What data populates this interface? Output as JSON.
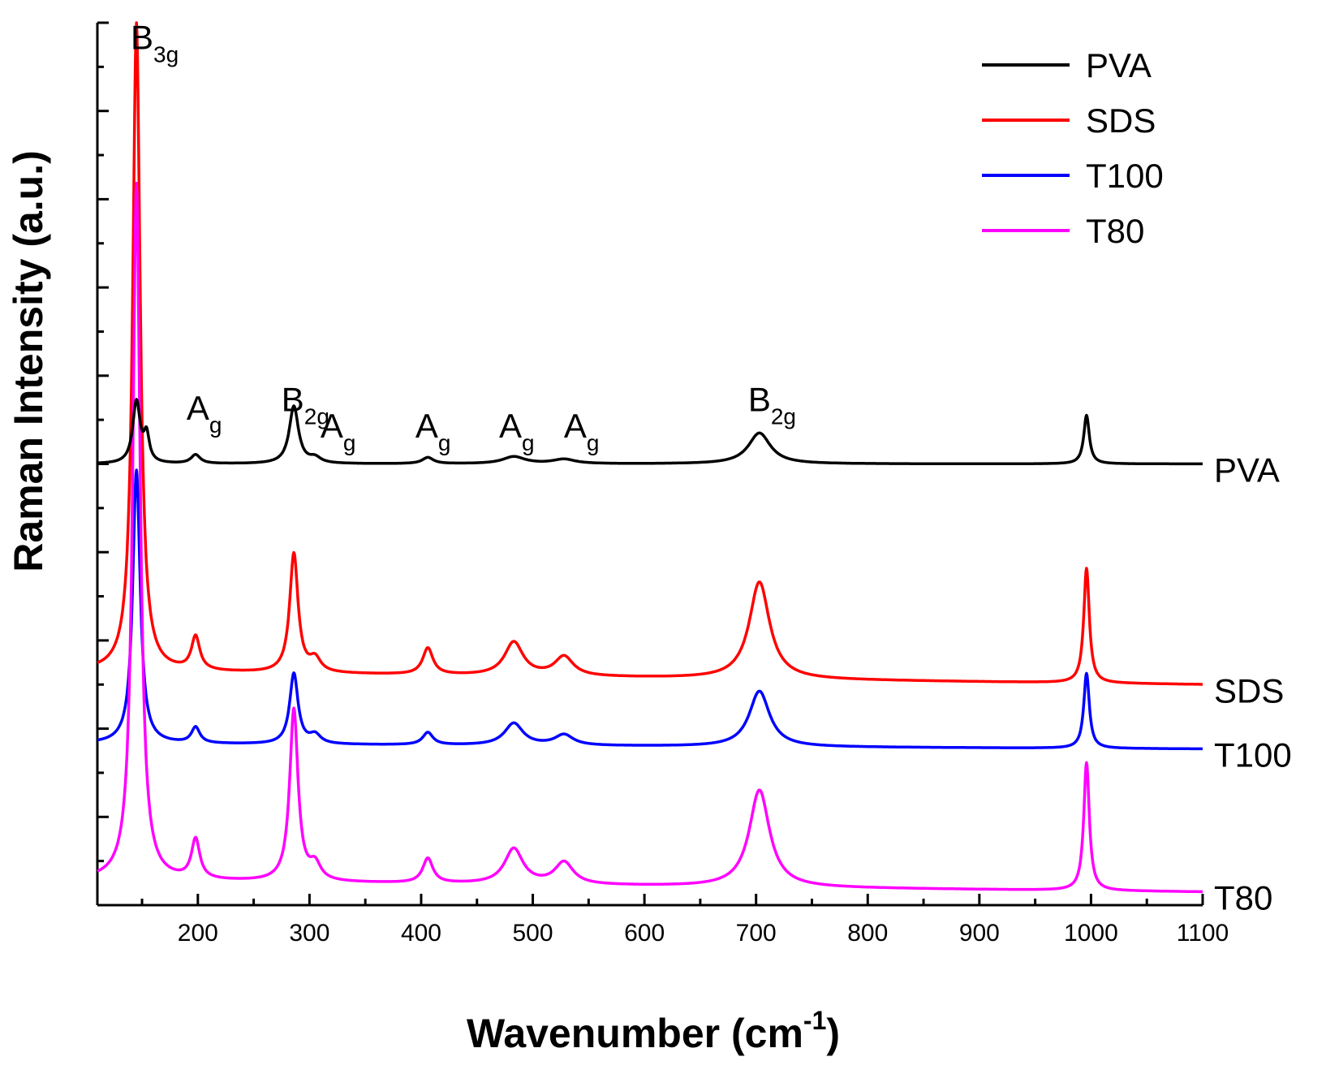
{
  "chart_data": {
    "type": "line",
    "title": "",
    "xlabel": "Wavenumber (cm",
    "xlabel_superscript": "-1",
    "xlabel_close": ")",
    "ylabel": "Raman Intensity (a.u.)",
    "xlim": [
      110,
      1100
    ],
    "ylim": [
      0,
      10
    ],
    "x_ticks": [
      200,
      300,
      400,
      500,
      600,
      700,
      800,
      900,
      1000,
      1100
    ],
    "x_tick_labels": [
      "200",
      "300",
      "400",
      "500",
      "600",
      "700",
      "800",
      "900",
      "1000",
      "1100"
    ],
    "y_tick_labels_shown": false,
    "legend_position": "top-right",
    "series": [
      {
        "name": "PVA",
        "color": "#000000",
        "baseline": 5.0,
        "end_baseline": 5.0,
        "peaks": [
          {
            "x": 145,
            "h": 0.7,
            "w": 4
          },
          {
            "x": 154,
            "h": 0.3,
            "w": 3
          },
          {
            "x": 198,
            "h": 0.1,
            "w": 5
          },
          {
            "x": 286,
            "h": 0.65,
            "w": 5
          },
          {
            "x": 305,
            "h": 0.06,
            "w": 6
          },
          {
            "x": 406,
            "h": 0.07,
            "w": 6
          },
          {
            "x": 483,
            "h": 0.08,
            "w": 12
          },
          {
            "x": 528,
            "h": 0.05,
            "w": 12
          },
          {
            "x": 703,
            "h": 0.35,
            "w": 12
          },
          {
            "x": 996,
            "h": 0.55,
            "w": 3
          }
        ]
      },
      {
        "name": "SDS",
        "color": "#ff0000",
        "baseline": 2.65,
        "end_baseline": 2.5,
        "peaks": [
          {
            "x": 145,
            "h": 7.35,
            "w": 4
          },
          {
            "x": 198,
            "h": 0.38,
            "w": 4.5
          },
          {
            "x": 286,
            "h": 1.35,
            "w": 4.5
          },
          {
            "x": 305,
            "h": 0.15,
            "w": 6
          },
          {
            "x": 406,
            "h": 0.3,
            "w": 5.5
          },
          {
            "x": 483,
            "h": 0.38,
            "w": 10
          },
          {
            "x": 528,
            "h": 0.22,
            "w": 10
          },
          {
            "x": 703,
            "h": 1.1,
            "w": 11
          },
          {
            "x": 996,
            "h": 1.3,
            "w": 3
          }
        ]
      },
      {
        "name": "T100",
        "color": "#0000ff",
        "baseline": 1.83,
        "end_baseline": 1.77,
        "peaks": [
          {
            "x": 145,
            "h": 3.1,
            "w": 4
          },
          {
            "x": 198,
            "h": 0.18,
            "w": 4.5
          },
          {
            "x": 286,
            "h": 0.8,
            "w": 4.5
          },
          {
            "x": 305,
            "h": 0.1,
            "w": 6
          },
          {
            "x": 406,
            "h": 0.14,
            "w": 5.5
          },
          {
            "x": 483,
            "h": 0.25,
            "w": 10
          },
          {
            "x": 528,
            "h": 0.12,
            "w": 10
          },
          {
            "x": 703,
            "h": 0.63,
            "w": 11
          },
          {
            "x": 996,
            "h": 0.85,
            "w": 3
          }
        ]
      },
      {
        "name": "T80",
        "color": "#ff00ff",
        "baseline": 0.28,
        "end_baseline": 0.15,
        "peaks": [
          {
            "x": 145,
            "h": 7.9,
            "w": 4
          },
          {
            "x": 198,
            "h": 0.45,
            "w": 4.5
          },
          {
            "x": 286,
            "h": 1.95,
            "w": 4.5
          },
          {
            "x": 305,
            "h": 0.18,
            "w": 6
          },
          {
            "x": 406,
            "h": 0.28,
            "w": 5.5
          },
          {
            "x": 483,
            "h": 0.4,
            "w": 10
          },
          {
            "x": 528,
            "h": 0.25,
            "w": 10
          },
          {
            "x": 703,
            "h": 1.1,
            "w": 11
          },
          {
            "x": 996,
            "h": 1.45,
            "w": 3
          }
        ]
      }
    ],
    "annotations": [
      {
        "main": "B",
        "sub": "3g",
        "x": 150,
        "y": 9.7
      },
      {
        "main": "A",
        "sub": "g",
        "x": 200,
        "y": 5.5
      },
      {
        "main": "B",
        "sub": "2g",
        "x": 285,
        "y": 5.6
      },
      {
        "main": "A",
        "sub": "g",
        "x": 320,
        "y": 5.3
      },
      {
        "main": "A",
        "sub": "g",
        "x": 405,
        "y": 5.3
      },
      {
        "main": "A",
        "sub": "g",
        "x": 480,
        "y": 5.3
      },
      {
        "main": "A",
        "sub": "g",
        "x": 538,
        "y": 5.3
      },
      {
        "main": "B",
        "sub": "2g",
        "x": 703,
        "y": 5.6
      }
    ]
  }
}
